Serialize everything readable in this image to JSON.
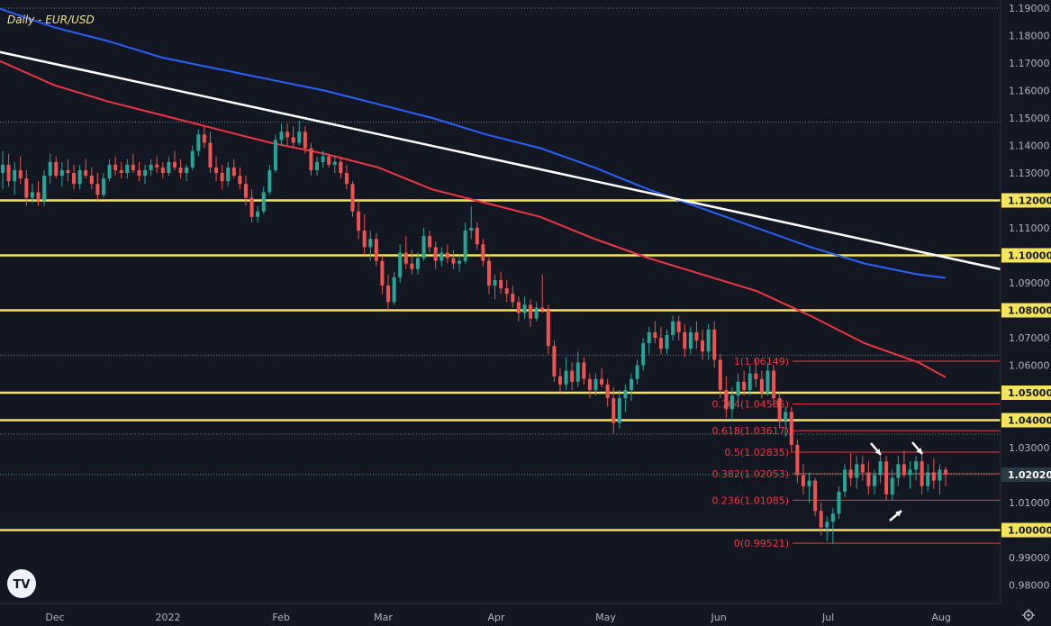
{
  "colors": {
    "background": "#131722",
    "grid": "#9598a1",
    "up": "#26a69a",
    "down": "#ef5350",
    "support": "#f5e35a",
    "ma_blue": "#2962ff",
    "ma_red": "#f23645",
    "trendline": "#ffffff",
    "fib": "#f23645"
  },
  "icons": [
    "tradingview-logo-icon",
    "settings-gear-icon",
    "arrow-icon"
  ],
  "chart_data": {
    "type": "candlestick",
    "title": "Daily - EUR/USD",
    "ylim": [
      0.975,
      1.192
    ],
    "y_ticks": [
      "1.19000",
      "1.18000",
      "1.17000",
      "1.16000",
      "1.15000",
      "1.14000",
      "1.13000",
      "1.12000",
      "1.11000",
      "1.10000",
      "1.09000",
      "1.08000",
      "1.07000",
      "1.06000",
      "1.05000",
      "1.04000",
      "1.03000",
      "1.02000",
      "1.01000",
      "1.00000",
      "0.99000",
      "0.98000"
    ],
    "x_labels": [
      "Dec",
      "2022",
      "Feb",
      "Mar",
      "Apr",
      "May",
      "Jun",
      "Jul",
      "Aug"
    ],
    "current_price": "1.02020",
    "horizontal_levels": [
      1.12,
      1.1,
      1.08,
      1.05,
      1.04,
      1.0
    ],
    "highlighted_levels": [
      "1.12000",
      "1.10000",
      "1.08000",
      "1.05000",
      "1.04000",
      "1.00000"
    ],
    "dotted_levels": [
      1.19,
      1.1485,
      1.0637,
      1.0349
    ],
    "fibonacci": [
      {
        "label": "1(1.06149)",
        "value": 1.06149
      },
      {
        "label": "0.764(1.04585)",
        "value": 1.04585
      },
      {
        "label": "0.618(1.03617)",
        "value": 1.03617
      },
      {
        "label": "0.5(1.02835)",
        "value": 1.02835
      },
      {
        "label": "0.382(1.02053)",
        "value": 1.02053
      },
      {
        "label": "0.236(1.01085)",
        "value": 1.01085
      },
      {
        "label": "0(0.99521)",
        "value": 0.99521
      }
    ],
    "trendline": [
      {
        "x": "2021-11-09",
        "y": 1.176
      },
      {
        "x": "2022-08-24",
        "y": 1.093
      }
    ],
    "ma_blue": [
      [
        -2,
        1.19
      ],
      [
        60,
        1.183
      ],
      [
        120,
        1.178
      ],
      [
        180,
        1.172
      ],
      [
        240,
        1.168
      ],
      [
        300,
        1.164
      ],
      [
        360,
        1.16
      ],
      [
        420,
        1.155
      ],
      [
        480,
        1.15
      ],
      [
        540,
        1.144
      ],
      [
        600,
        1.139
      ],
      [
        660,
        1.132
      ],
      [
        720,
        1.124
      ],
      [
        780,
        1.117
      ],
      [
        840,
        1.11
      ],
      [
        900,
        1.103
      ],
      [
        960,
        1.097
      ],
      [
        1020,
        1.093
      ],
      [
        1050,
        1.0918
      ]
    ],
    "ma_red": [
      [
        -2,
        1.171
      ],
      [
        60,
        1.162
      ],
      [
        120,
        1.156
      ],
      [
        180,
        1.151
      ],
      [
        240,
        1.146
      ],
      [
        300,
        1.141
      ],
      [
        360,
        1.137
      ],
      [
        420,
        1.132
      ],
      [
        480,
        1.124
      ],
      [
        540,
        1.119
      ],
      [
        600,
        1.114
      ],
      [
        660,
        1.106
      ],
      [
        720,
        1.099
      ],
      [
        780,
        1.093
      ],
      [
        840,
        1.087
      ],
      [
        900,
        1.078
      ],
      [
        960,
        1.068
      ],
      [
        1020,
        1.061
      ],
      [
        1050,
        1.0556
      ]
    ],
    "candles": [
      [
        1.13,
        1.138,
        1.124,
        1.133
      ],
      [
        1.133,
        1.137,
        1.125,
        1.127
      ],
      [
        1.127,
        1.134,
        1.122,
        1.131
      ],
      [
        1.131,
        1.136,
        1.126,
        1.128
      ],
      [
        1.128,
        1.131,
        1.118,
        1.121
      ],
      [
        1.121,
        1.126,
        1.119,
        1.123
      ],
      [
        1.123,
        1.127,
        1.118,
        1.12
      ],
      [
        1.12,
        1.131,
        1.118,
        1.129
      ],
      [
        1.129,
        1.137,
        1.126,
        1.134
      ],
      [
        1.134,
        1.136,
        1.128,
        1.129
      ],
      [
        1.129,
        1.134,
        1.125,
        1.131
      ],
      [
        1.131,
        1.135,
        1.127,
        1.13
      ],
      [
        1.13,
        1.133,
        1.124,
        1.126
      ],
      [
        1.126,
        1.133,
        1.124,
        1.131
      ],
      [
        1.131,
        1.135,
        1.128,
        1.129
      ],
      [
        1.129,
        1.132,
        1.124,
        1.126
      ],
      [
        1.126,
        1.13,
        1.12,
        1.122
      ],
      [
        1.122,
        1.13,
        1.121,
        1.128
      ],
      [
        1.128,
        1.135,
        1.127,
        1.133
      ],
      [
        1.133,
        1.136,
        1.129,
        1.131
      ],
      [
        1.131,
        1.134,
        1.128,
        1.13
      ],
      [
        1.13,
        1.135,
        1.128,
        1.133
      ],
      [
        1.133,
        1.137,
        1.13,
        1.131
      ],
      [
        1.131,
        1.134,
        1.127,
        1.129
      ],
      [
        1.129,
        1.133,
        1.126,
        1.131
      ],
      [
        1.131,
        1.135,
        1.129,
        1.133
      ],
      [
        1.133,
        1.136,
        1.13,
        1.132
      ],
      [
        1.132,
        1.134,
        1.128,
        1.13
      ],
      [
        1.13,
        1.136,
        1.129,
        1.134
      ],
      [
        1.134,
        1.138,
        1.131,
        1.132
      ],
      [
        1.132,
        1.135,
        1.128,
        1.13
      ],
      [
        1.13,
        1.133,
        1.127,
        1.132
      ],
      [
        1.132,
        1.14,
        1.131,
        1.138
      ],
      [
        1.138,
        1.146,
        1.136,
        1.144
      ],
      [
        1.144,
        1.147,
        1.139,
        1.141
      ],
      [
        1.141,
        1.145,
        1.13,
        1.132
      ],
      [
        1.132,
        1.136,
        1.127,
        1.13
      ],
      [
        1.13,
        1.133,
        1.124,
        1.127
      ],
      [
        1.127,
        1.134,
        1.125,
        1.132
      ],
      [
        1.132,
        1.135,
        1.128,
        1.129
      ],
      [
        1.129,
        1.132,
        1.124,
        1.126
      ],
      [
        1.126,
        1.129,
        1.118,
        1.121
      ],
      [
        1.121,
        1.124,
        1.112,
        1.114
      ],
      [
        1.114,
        1.118,
        1.112,
        1.116
      ],
      [
        1.116,
        1.125,
        1.115,
        1.123
      ],
      [
        1.123,
        1.133,
        1.122,
        1.131
      ],
      [
        1.131,
        1.144,
        1.13,
        1.142
      ],
      [
        1.142,
        1.148,
        1.14,
        1.145
      ],
      [
        1.145,
        1.148,
        1.14,
        1.143
      ],
      [
        1.143,
        1.147,
        1.139,
        1.141
      ],
      [
        1.141,
        1.149,
        1.14,
        1.145
      ],
      [
        1.145,
        1.147,
        1.137,
        1.139
      ],
      [
        1.139,
        1.141,
        1.129,
        1.131
      ],
      [
        1.131,
        1.136,
        1.129,
        1.134
      ],
      [
        1.134,
        1.138,
        1.132,
        1.136
      ],
      [
        1.136,
        1.137,
        1.132,
        1.133
      ],
      [
        1.133,
        1.136,
        1.13,
        1.134
      ],
      [
        1.134,
        1.136,
        1.128,
        1.13
      ],
      [
        1.13,
        1.133,
        1.124,
        1.126
      ],
      [
        1.126,
        1.127,
        1.114,
        1.116
      ],
      [
        1.116,
        1.12,
        1.106,
        1.109
      ],
      [
        1.109,
        1.115,
        1.1,
        1.103
      ],
      [
        1.103,
        1.109,
        1.098,
        1.106
      ],
      [
        1.106,
        1.108,
        1.096,
        1.098
      ],
      [
        1.098,
        1.1,
        1.086,
        1.089
      ],
      [
        1.089,
        1.093,
        1.08,
        1.083
      ],
      [
        1.083,
        1.094,
        1.082,
        1.092
      ],
      [
        1.092,
        1.104,
        1.09,
        1.101
      ],
      [
        1.101,
        1.107,
        1.095,
        1.097
      ],
      [
        1.097,
        1.102,
        1.093,
        1.095
      ],
      [
        1.095,
        1.101,
        1.093,
        1.099
      ],
      [
        1.099,
        1.11,
        1.098,
        1.107
      ],
      [
        1.107,
        1.109,
        1.101,
        1.103
      ],
      [
        1.103,
        1.105,
        1.095,
        1.098
      ],
      [
        1.098,
        1.103,
        1.096,
        1.101
      ],
      [
        1.101,
        1.104,
        1.097,
        1.099
      ],
      [
        1.099,
        1.102,
        1.095,
        1.097
      ],
      [
        1.097,
        1.1,
        1.094,
        1.098
      ],
      [
        1.098,
        1.112,
        1.097,
        1.109
      ],
      [
        1.109,
        1.118,
        1.106,
        1.11
      ],
      [
        1.11,
        1.112,
        1.102,
        1.104
      ],
      [
        1.104,
        1.106,
        1.096,
        1.098
      ],
      [
        1.098,
        1.1,
        1.086,
        1.089
      ],
      [
        1.089,
        1.093,
        1.084,
        1.091
      ],
      [
        1.091,
        1.094,
        1.086,
        1.088
      ],
      [
        1.088,
        1.091,
        1.083,
        1.086
      ],
      [
        1.086,
        1.089,
        1.081,
        1.083
      ],
      [
        1.083,
        1.085,
        1.076,
        1.079
      ],
      [
        1.079,
        1.085,
        1.077,
        1.082
      ],
      [
        1.082,
        1.084,
        1.074,
        1.077
      ],
      [
        1.077,
        1.083,
        1.076,
        1.081
      ],
      [
        1.081,
        1.093,
        1.079,
        1.08
      ],
      [
        1.08,
        1.082,
        1.064,
        1.067
      ],
      [
        1.067,
        1.069,
        1.054,
        1.056
      ],
      [
        1.056,
        1.059,
        1.05,
        1.053
      ],
      [
        1.053,
        1.063,
        1.051,
        1.058
      ],
      [
        1.058,
        1.061,
        1.051,
        1.054
      ],
      [
        1.054,
        1.065,
        1.052,
        1.061
      ],
      [
        1.061,
        1.063,
        1.053,
        1.055
      ],
      [
        1.055,
        1.057,
        1.048,
        1.051
      ],
      [
        1.051,
        1.057,
        1.049,
        1.055
      ],
      [
        1.055,
        1.059,
        1.052,
        1.053
      ],
      [
        1.053,
        1.055,
        1.045,
        1.048
      ],
      [
        1.048,
        1.052,
        1.035,
        1.039
      ],
      [
        1.039,
        1.051,
        1.037,
        1.048
      ],
      [
        1.048,
        1.053,
        1.043,
        1.051
      ],
      [
        1.051,
        1.057,
        1.047,
        1.055
      ],
      [
        1.055,
        1.062,
        1.053,
        1.06
      ],
      [
        1.06,
        1.07,
        1.058,
        1.068
      ],
      [
        1.068,
        1.074,
        1.064,
        1.072
      ],
      [
        1.072,
        1.076,
        1.068,
        1.07
      ],
      [
        1.07,
        1.074,
        1.064,
        1.066
      ],
      [
        1.066,
        1.073,
        1.064,
        1.071
      ],
      [
        1.071,
        1.078,
        1.069,
        1.076
      ],
      [
        1.076,
        1.078,
        1.069,
        1.072
      ],
      [
        1.072,
        1.075,
        1.063,
        1.066
      ],
      [
        1.066,
        1.074,
        1.064,
        1.072
      ],
      [
        1.072,
        1.076,
        1.066,
        1.069
      ],
      [
        1.069,
        1.073,
        1.062,
        1.065
      ],
      [
        1.065,
        1.075,
        1.062,
        1.073
      ],
      [
        1.073,
        1.076,
        1.059,
        1.062
      ],
      [
        1.062,
        1.064,
        1.048,
        1.051
      ],
      [
        1.051,
        1.056,
        1.041,
        1.044
      ],
      [
        1.044,
        1.052,
        1.04,
        1.049
      ],
      [
        1.049,
        1.057,
        1.046,
        1.054
      ],
      [
        1.054,
        1.058,
        1.049,
        1.051
      ],
      [
        1.051,
        1.06,
        1.049,
        1.057
      ],
      [
        1.057,
        1.062,
        1.052,
        1.055
      ],
      [
        1.055,
        1.058,
        1.048,
        1.05
      ],
      [
        1.05,
        1.061,
        1.049,
        1.058
      ],
      [
        1.058,
        1.06,
        1.045,
        1.048
      ],
      [
        1.048,
        1.05,
        1.037,
        1.04
      ],
      [
        1.04,
        1.045,
        1.034,
        1.043
      ],
      [
        1.043,
        1.045,
        1.028,
        1.031
      ],
      [
        1.031,
        1.033,
        1.017,
        1.02
      ],
      [
        1.02,
        1.024,
        1.013,
        1.016
      ],
      [
        1.016,
        1.021,
        1.01,
        1.018
      ],
      [
        1.018,
        1.019,
        1.005,
        1.007
      ],
      [
        1.007,
        1.01,
        0.998,
        1.001
      ],
      [
        1.001,
        1.005,
        0.996,
        1.003
      ],
      [
        1.003,
        1.008,
        0.995,
        1.006
      ],
      [
        1.006,
        1.016,
        1.004,
        1.014
      ],
      [
        1.014,
        1.024,
        1.012,
        1.022
      ],
      [
        1.022,
        1.028,
        1.016,
        1.019
      ],
      [
        1.019,
        1.027,
        1.015,
        1.024
      ],
      [
        1.024,
        1.027,
        1.018,
        1.021
      ],
      [
        1.021,
        1.025,
        1.013,
        1.016
      ],
      [
        1.016,
        1.022,
        1.013,
        1.02
      ],
      [
        1.02,
        1.027,
        1.017,
        1.025
      ],
      [
        1.025,
        1.027,
        1.011,
        1.013
      ],
      [
        1.013,
        1.022,
        1.011,
        1.019
      ],
      [
        1.019,
        1.027,
        1.016,
        1.024
      ],
      [
        1.024,
        1.029,
        1.019,
        1.02
      ],
      [
        1.02,
        1.025,
        1.015,
        1.022
      ],
      [
        1.022,
        1.027,
        1.018,
        1.025
      ],
      [
        1.025,
        1.029,
        1.013,
        1.016
      ],
      [
        1.016,
        1.024,
        1.014,
        1.021
      ],
      [
        1.021,
        1.026,
        1.015,
        1.018
      ],
      [
        1.018,
        1.024,
        1.013,
        1.022
      ],
      [
        1.022,
        1.023,
        1.016,
        1.0202
      ]
    ]
  }
}
